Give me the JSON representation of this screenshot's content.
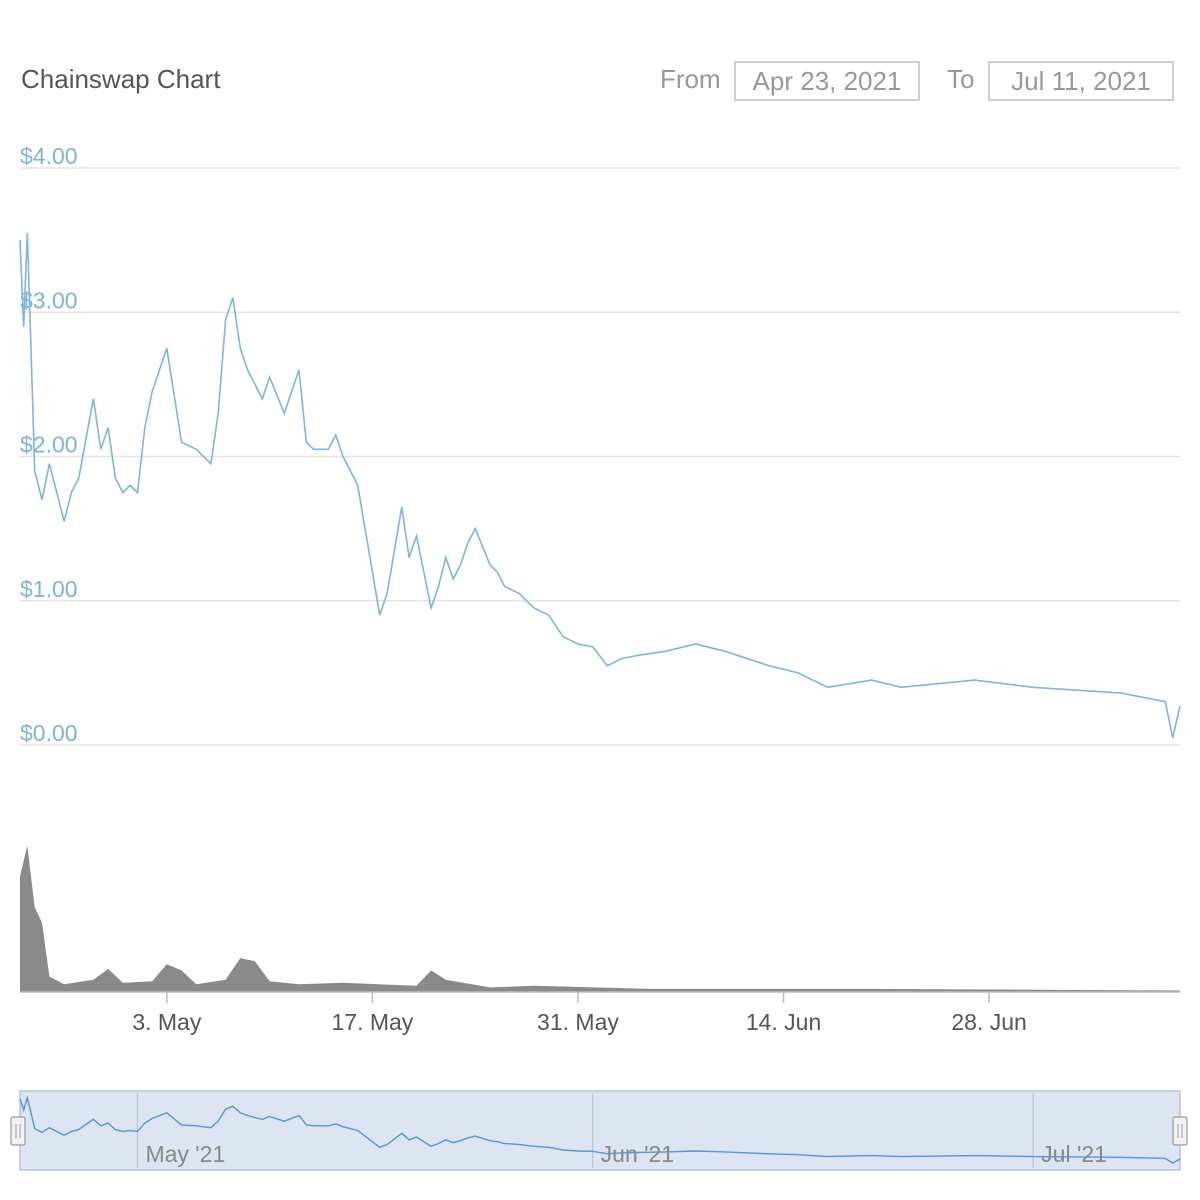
{
  "header": {
    "title": "Chainswap Chart",
    "from_label": "From",
    "from_value": "Apr 23, 2021",
    "to_label": "To",
    "to_value": "Jul 11, 2021"
  },
  "colors": {
    "price_line": "#7fb3e3",
    "volume_fill": "#8a8a8a",
    "navigator_fill": "#dde5f2",
    "navigator_line": "#5b93d6",
    "axis_label": "#7fb3d8"
  },
  "chart_data": {
    "type": "line",
    "title": "Chainswap Chart",
    "x_range": [
      "Apr 23, 2021",
      "Jul 11, 2021"
    ],
    "ylim": [
      0,
      4
    ],
    "y_tick_labels": [
      "$0.00",
      "$1.00",
      "$2.00",
      "$3.00",
      "$4.00"
    ],
    "x_tick_labels": [
      "3. May",
      "17. May",
      "31. May",
      "14. Jun",
      "28. Jun"
    ],
    "grid": true,
    "price": {
      "x": [
        "2021-04-23",
        "2021-04-23T06",
        "2021-04-23T12",
        "2021-04-23T18",
        "2021-04-24",
        "2021-04-24T12",
        "2021-04-25",
        "2021-04-26",
        "2021-04-26T12",
        "2021-04-27",
        "2021-04-28",
        "2021-04-28T12",
        "2021-04-29",
        "2021-04-29T12",
        "2021-04-30",
        "2021-04-30T12",
        "2021-05-01",
        "2021-05-01T12",
        "2021-05-02",
        "2021-05-03",
        "2021-05-04",
        "2021-05-05",
        "2021-05-05T12",
        "2021-05-06",
        "2021-05-06T12",
        "2021-05-07",
        "2021-05-07T12",
        "2021-05-08",
        "2021-05-08T12",
        "2021-05-09",
        "2021-05-09T12",
        "2021-05-10",
        "2021-05-11",
        "2021-05-12",
        "2021-05-12T12",
        "2021-05-13",
        "2021-05-14",
        "2021-05-14T12",
        "2021-05-15",
        "2021-05-15T12",
        "2021-05-16",
        "2021-05-17",
        "2021-05-17T12",
        "2021-05-18",
        "2021-05-19",
        "2021-05-19T12",
        "2021-05-20",
        "2021-05-21",
        "2021-05-21T12",
        "2021-05-22",
        "2021-05-22T12",
        "2021-05-23",
        "2021-05-23T12",
        "2021-05-24",
        "2021-05-25",
        "2021-05-25T12",
        "2021-05-26",
        "2021-05-27",
        "2021-05-27T12",
        "2021-05-28",
        "2021-05-29",
        "2021-05-30",
        "2021-05-31",
        "2021-06-01",
        "2021-06-02",
        "2021-06-03",
        "2021-06-04",
        "2021-06-06",
        "2021-06-08",
        "2021-06-10",
        "2021-06-13",
        "2021-06-15",
        "2021-06-17",
        "2021-06-20",
        "2021-06-22",
        "2021-06-24",
        "2021-06-27",
        "2021-07-01",
        "2021-07-04",
        "2021-07-07",
        "2021-07-10",
        "2021-07-10T12",
        "2021-07-11"
      ],
      "y": [
        3.5,
        2.9,
        3.55,
        2.75,
        1.9,
        1.7,
        1.95,
        1.55,
        1.75,
        1.85,
        2.4,
        2.05,
        2.2,
        1.85,
        1.75,
        1.8,
        1.75,
        2.2,
        2.45,
        2.75,
        2.1,
        2.05,
        2.0,
        1.95,
        2.3,
        2.95,
        3.1,
        2.75,
        2.6,
        2.5,
        2.4,
        2.55,
        2.3,
        2.6,
        2.1,
        2.05,
        2.05,
        2.15,
        2.0,
        1.9,
        1.8,
        1.2,
        0.9,
        1.05,
        1.65,
        1.3,
        1.45,
        0.95,
        1.1,
        1.3,
        1.15,
        1.25,
        1.4,
        1.5,
        1.25,
        1.2,
        1.1,
        1.05,
        1.0,
        0.95,
        0.9,
        0.75,
        0.7,
        0.68,
        0.55,
        0.6,
        0.62,
        0.65,
        0.7,
        0.65,
        0.55,
        0.5,
        0.4,
        0.45,
        0.4,
        0.42,
        0.45,
        0.4,
        0.38,
        0.36,
        0.3,
        0.05,
        0.27
      ]
    },
    "volume": {
      "x": [
        "2021-04-23",
        "2021-04-23T12",
        "2021-04-24",
        "2021-04-24T12",
        "2021-04-25",
        "2021-04-26",
        "2021-04-28",
        "2021-04-29",
        "2021-04-30",
        "2021-05-02",
        "2021-05-03",
        "2021-05-04",
        "2021-05-05",
        "2021-05-07",
        "2021-05-08",
        "2021-05-09",
        "2021-05-10",
        "2021-05-12",
        "2021-05-15",
        "2021-05-20",
        "2021-05-21",
        "2021-05-22",
        "2021-05-25",
        "2021-05-28",
        "2021-06-05",
        "2021-06-20",
        "2021-07-11"
      ],
      "y": [
        0.75,
        0.95,
        0.55,
        0.45,
        0.1,
        0.05,
        0.08,
        0.15,
        0.06,
        0.07,
        0.18,
        0.14,
        0.05,
        0.08,
        0.22,
        0.2,
        0.07,
        0.05,
        0.06,
        0.04,
        0.14,
        0.08,
        0.03,
        0.04,
        0.02,
        0.02,
        0.01
      ]
    },
    "navigator": {
      "labels": [
        "May '21",
        "Jun '21",
        "Jul '21"
      ]
    }
  }
}
